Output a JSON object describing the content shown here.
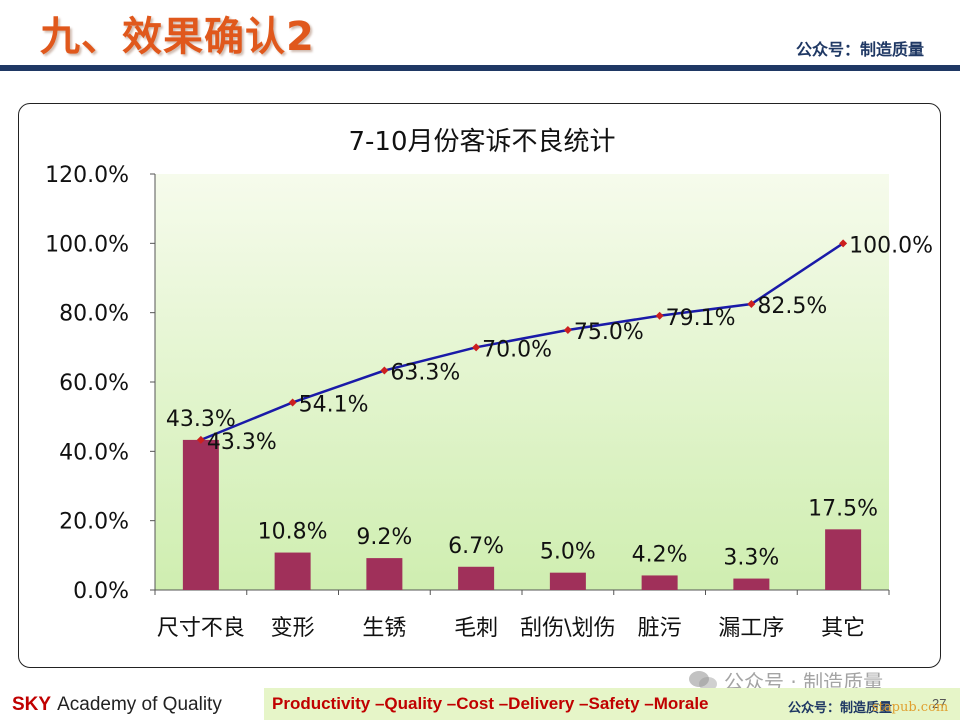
{
  "slide": {
    "title": "九、效果确认2",
    "top_watermark": "公众号：制造质量"
  },
  "footer": {
    "brand": "SKY",
    "academy": "Academy of Quality",
    "slogan": "Productivity –Quality –Cost –Delivery –Safety –Morale",
    "watermark": "公众号：制造质量",
    "page_number": "27"
  },
  "overlay": {
    "wechat_text": "公众号 · 制造质量",
    "site_mark": "stapub.com"
  },
  "colors": {
    "title": "#e0581c",
    "bar": "#a0305a",
    "line": "#1a1aa8",
    "marker": "#cc2020",
    "plot_bg_top": "#f6fbec",
    "plot_bg_bottom": "#cfeeb0",
    "navy": "#1f3864"
  },
  "chart_data": {
    "type": "bar",
    "title": "7-10月份客诉不良统计",
    "categories": [
      "尺寸不良",
      "变形",
      "生锈",
      "毛刺",
      "刮伤\\划伤",
      "脏污",
      "漏工序",
      "其它"
    ],
    "ylim": [
      0,
      120
    ],
    "ytick_labels": [
      "0.0%",
      "20.0%",
      "40.0%",
      "60.0%",
      "80.0%",
      "100.0%",
      "120.0%"
    ],
    "series": [
      {
        "type": "bar",
        "values": [
          43.3,
          10.8,
          9.2,
          6.7,
          5.0,
          4.2,
          3.3,
          17.5
        ],
        "labels": [
          "43.3%",
          "10.8%",
          "9.2%",
          "6.7%",
          "5.0%",
          "4.2%",
          "3.3%",
          "17.5%"
        ]
      },
      {
        "type": "line",
        "values": [
          43.3,
          54.1,
          63.3,
          70.0,
          75.0,
          79.1,
          82.5,
          100.0
        ],
        "labels": [
          "43.3%",
          "54.1%",
          "63.3%",
          "70.0%",
          "75.0%",
          "79.1%",
          "82.5%",
          "100.0%"
        ]
      }
    ],
    "grid": false,
    "legend": "none"
  }
}
